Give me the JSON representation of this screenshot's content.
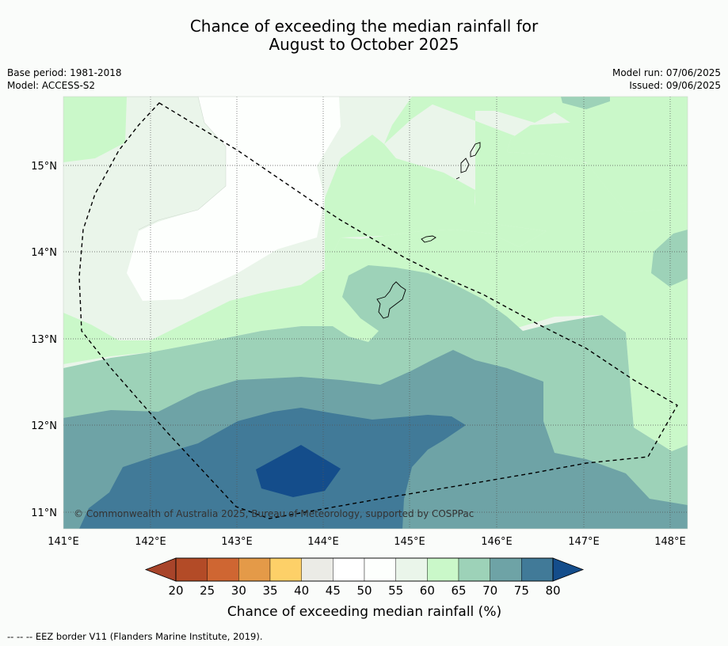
{
  "title_line1": "Chance of exceeding the median rainfall for",
  "title_line2": "August to October 2025",
  "base_period": "Base period: 1981-2018",
  "model": "Model: ACCESS-S2",
  "model_run": "Model run: 07/06/2025",
  "issued": "Issued: 09/06/2025",
  "lat_labels": [
    "15°N",
    "14°N",
    "13°N",
    "12°N",
    "11°N"
  ],
  "lon_labels": [
    "141°E",
    "142°E",
    "143°E",
    "144°E",
    "145°E",
    "146°E",
    "147°E",
    "148°E"
  ],
  "copyright": "© Commonwealth of Australia 2025, Bureau of Meteorology, supported by COSPPac",
  "colorbar": {
    "ticks": [
      "20",
      "25",
      "30",
      "35",
      "40",
      "45",
      "50",
      "55",
      "60",
      "65",
      "70",
      "75",
      "80"
    ],
    "colors": [
      "#a8442a",
      "#b34b27",
      "#cf6632",
      "#e49a48",
      "#fdd068",
      "#ebebe6",
      "#ffffff",
      "#fdfffd",
      "#eaf5ea",
      "#caf8c9",
      "#9dd2b8",
      "#6ea3a6",
      "#417a98",
      "#144d8b"
    ],
    "title": "Chance of exceeding median rainfall (%)"
  },
  "footer": "--  --  -- EEZ border V11 (Flanders Marine Institute, 2019)."
}
